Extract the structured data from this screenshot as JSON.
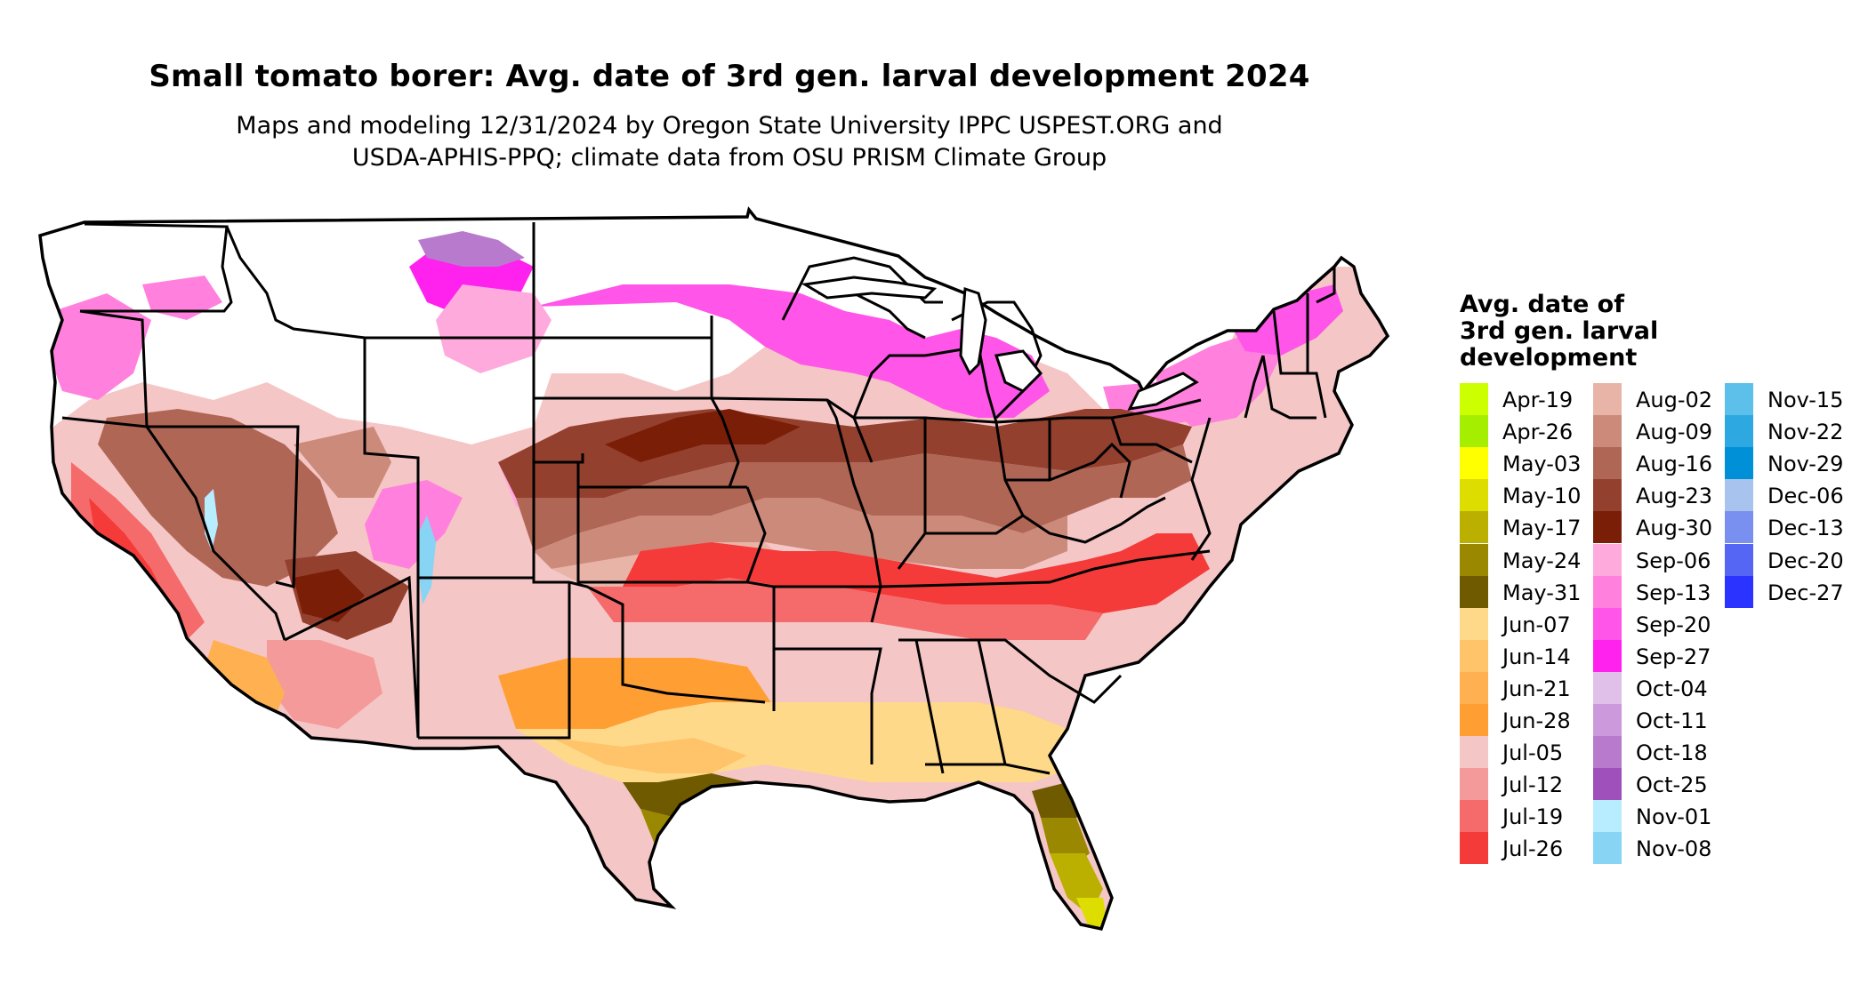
{
  "title": "Small tomato borer: Avg. date of 3rd gen. larval development 2024",
  "subtitle_line1": "Maps and modeling 12/31/2024 by Oregon State University IPPC USPEST.ORG and",
  "subtitle_line2": "USDA-APHIS-PPQ; climate data from OSU PRISM Climate Group",
  "legend": {
    "title_lines": [
      "Avg. date of",
      "3rd gen. larval",
      "development"
    ],
    "columns": [
      [
        {
          "label": "Apr-19",
          "color": "#ccff00"
        },
        {
          "label": "Apr-26",
          "color": "#a6ee00"
        },
        {
          "label": "May-03",
          "color": "#ffff00"
        },
        {
          "label": "May-10",
          "color": "#dddd00"
        },
        {
          "label": "May-17",
          "color": "#bbb000"
        },
        {
          "label": "May-24",
          "color": "#9a8800"
        },
        {
          "label": "May-31",
          "color": "#6f5a00"
        },
        {
          "label": "Jun-07",
          "color": "#ffd98a"
        },
        {
          "label": "Jun-14",
          "color": "#ffc46a"
        },
        {
          "label": "Jun-21",
          "color": "#ffb050"
        },
        {
          "label": "Jun-28",
          "color": "#ff9e33"
        },
        {
          "label": "Jul-05",
          "color": "#f5c6c6"
        },
        {
          "label": "Jul-12",
          "color": "#f59a9a"
        },
        {
          "label": "Jul-19",
          "color": "#f56a6a"
        },
        {
          "label": "Jul-26",
          "color": "#f53a3a"
        }
      ],
      [
        {
          "label": "Aug-02",
          "color": "#e8b4a8"
        },
        {
          "label": "Aug-09",
          "color": "#cc8a7a"
        },
        {
          "label": "Aug-16",
          "color": "#b06655"
        },
        {
          "label": "Aug-23",
          "color": "#94402e"
        },
        {
          "label": "Aug-30",
          "color": "#7a1e08"
        },
        {
          "label": "Sep-06",
          "color": "#ffaadd"
        },
        {
          "label": "Sep-13",
          "color": "#ff80dd"
        },
        {
          "label": "Sep-20",
          "color": "#ff55e8"
        },
        {
          "label": "Sep-27",
          "color": "#ff22ee"
        },
        {
          "label": "Oct-04",
          "color": "#e0c0e8"
        },
        {
          "label": "Oct-11",
          "color": "#cc99dd"
        },
        {
          "label": "Oct-18",
          "color": "#b87acc"
        },
        {
          "label": "Oct-25",
          "color": "#a050bb"
        },
        {
          "label": "Nov-01",
          "color": "#b8ecff"
        },
        {
          "label": "Nov-08",
          "color": "#88d4f5"
        }
      ],
      [
        {
          "label": "Nov-15",
          "color": "#5cc0ea"
        },
        {
          "label": "Nov-22",
          "color": "#2ea8e0"
        },
        {
          "label": "Nov-29",
          "color": "#0090d8"
        },
        {
          "label": "Dec-06",
          "color": "#a8c4ee"
        },
        {
          "label": "Dec-13",
          "color": "#7a90f0"
        },
        {
          "label": "Dec-20",
          "color": "#5566f5"
        },
        {
          "label": "Dec-27",
          "color": "#2a33ff"
        }
      ]
    ]
  }
}
